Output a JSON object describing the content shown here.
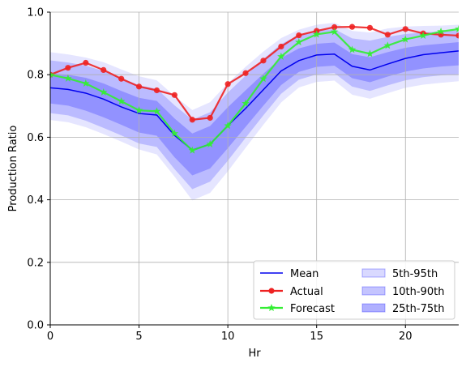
{
  "chart_data": {
    "type": "line",
    "title": "",
    "xlabel": "Hr",
    "ylabel": "Production Ratio",
    "xlim": [
      0,
      23
    ],
    "ylim": [
      0,
      1.0
    ],
    "xticks": [
      0,
      5,
      10,
      15,
      20
    ],
    "xtick_labels": [
      "0",
      "5",
      "10",
      "15",
      "20"
    ],
    "yticks": [
      0.0,
      0.2,
      0.4,
      0.6,
      0.8,
      1.0
    ],
    "ytick_labels": [
      "0.0",
      "0.2",
      "0.4",
      "0.6",
      "0.8",
      "1.0"
    ],
    "grid": true,
    "legend_position": "lower-right",
    "x": [
      0,
      1,
      2,
      3,
      4,
      5,
      6,
      7,
      8,
      9,
      10,
      11,
      12,
      13,
      14,
      15,
      16,
      17,
      18,
      19,
      20,
      21,
      22,
      23
    ],
    "series": [
      {
        "name": "Mean",
        "color": "#0000ee",
        "values": [
          0.758,
          0.753,
          0.741,
          0.722,
          0.697,
          0.676,
          0.671,
          0.606,
          0.559,
          0.578,
          0.637,
          0.692,
          0.752,
          0.812,
          0.845,
          0.863,
          0.866,
          0.827,
          0.815,
          0.834,
          0.852,
          0.864,
          0.87,
          0.876
        ]
      },
      {
        "name": "Actual",
        "color": "#ee2222",
        "values": [
          0.8,
          0.822,
          0.838,
          0.815,
          0.787,
          0.762,
          0.75,
          0.735,
          0.656,
          0.662,
          0.77,
          0.805,
          0.845,
          0.89,
          0.926,
          0.94,
          0.952,
          0.953,
          0.95,
          0.928,
          0.946,
          0.932,
          0.928,
          0.925
        ]
      },
      {
        "name": "Forecast",
        "color": "#33ee33",
        "values": [
          0.8,
          0.788,
          0.772,
          0.744,
          0.715,
          0.686,
          0.683,
          0.612,
          0.558,
          0.578,
          0.637,
          0.708,
          0.787,
          0.858,
          0.904,
          0.929,
          0.937,
          0.88,
          0.867,
          0.893,
          0.913,
          0.925,
          0.938,
          0.946
        ]
      }
    ],
    "bands": [
      {
        "name": "5th-95th",
        "color": "#0000ff",
        "opacity": 0.1,
        "lower": [
          0.655,
          0.648,
          0.632,
          0.61,
          0.586,
          0.561,
          0.545,
          0.474,
          0.398,
          0.422,
          0.491,
          0.566,
          0.64,
          0.711,
          0.759,
          0.777,
          0.781,
          0.736,
          0.723,
          0.741,
          0.758,
          0.768,
          0.774,
          0.779
        ],
        "upper": [
          0.872,
          0.865,
          0.855,
          0.84,
          0.817,
          0.795,
          0.782,
          0.732,
          0.687,
          0.712,
          0.773,
          0.825,
          0.874,
          0.917,
          0.944,
          0.96,
          0.966,
          0.94,
          0.935,
          0.948,
          0.954,
          0.956,
          0.957,
          0.96
        ]
      },
      {
        "name": "10th-90th",
        "color": "#0000ff",
        "opacity": 0.18,
        "lower": [
          0.677,
          0.67,
          0.653,
          0.63,
          0.606,
          0.58,
          0.569,
          0.498,
          0.434,
          0.458,
          0.525,
          0.598,
          0.67,
          0.739,
          0.784,
          0.801,
          0.805,
          0.762,
          0.748,
          0.766,
          0.782,
          0.792,
          0.798,
          0.801
        ],
        "upper": [
          0.846,
          0.839,
          0.829,
          0.812,
          0.79,
          0.766,
          0.755,
          0.702,
          0.656,
          0.68,
          0.743,
          0.797,
          0.85,
          0.898,
          0.927,
          0.941,
          0.946,
          0.916,
          0.909,
          0.921,
          0.93,
          0.935,
          0.938,
          0.942
        ]
      },
      {
        "name": "25th-75th",
        "color": "#0000ff",
        "opacity": 0.22,
        "lower": [
          0.708,
          0.701,
          0.685,
          0.664,
          0.64,
          0.615,
          0.605,
          0.536,
          0.478,
          0.5,
          0.565,
          0.633,
          0.701,
          0.767,
          0.809,
          0.825,
          0.829,
          0.789,
          0.776,
          0.794,
          0.81,
          0.82,
          0.826,
          0.83
        ],
        "upper": [
          0.805,
          0.8,
          0.79,
          0.772,
          0.748,
          0.726,
          0.716,
          0.66,
          0.612,
          0.636,
          0.696,
          0.75,
          0.803,
          0.853,
          0.884,
          0.899,
          0.903,
          0.866,
          0.856,
          0.872,
          0.886,
          0.894,
          0.899,
          0.904
        ]
      }
    ]
  }
}
